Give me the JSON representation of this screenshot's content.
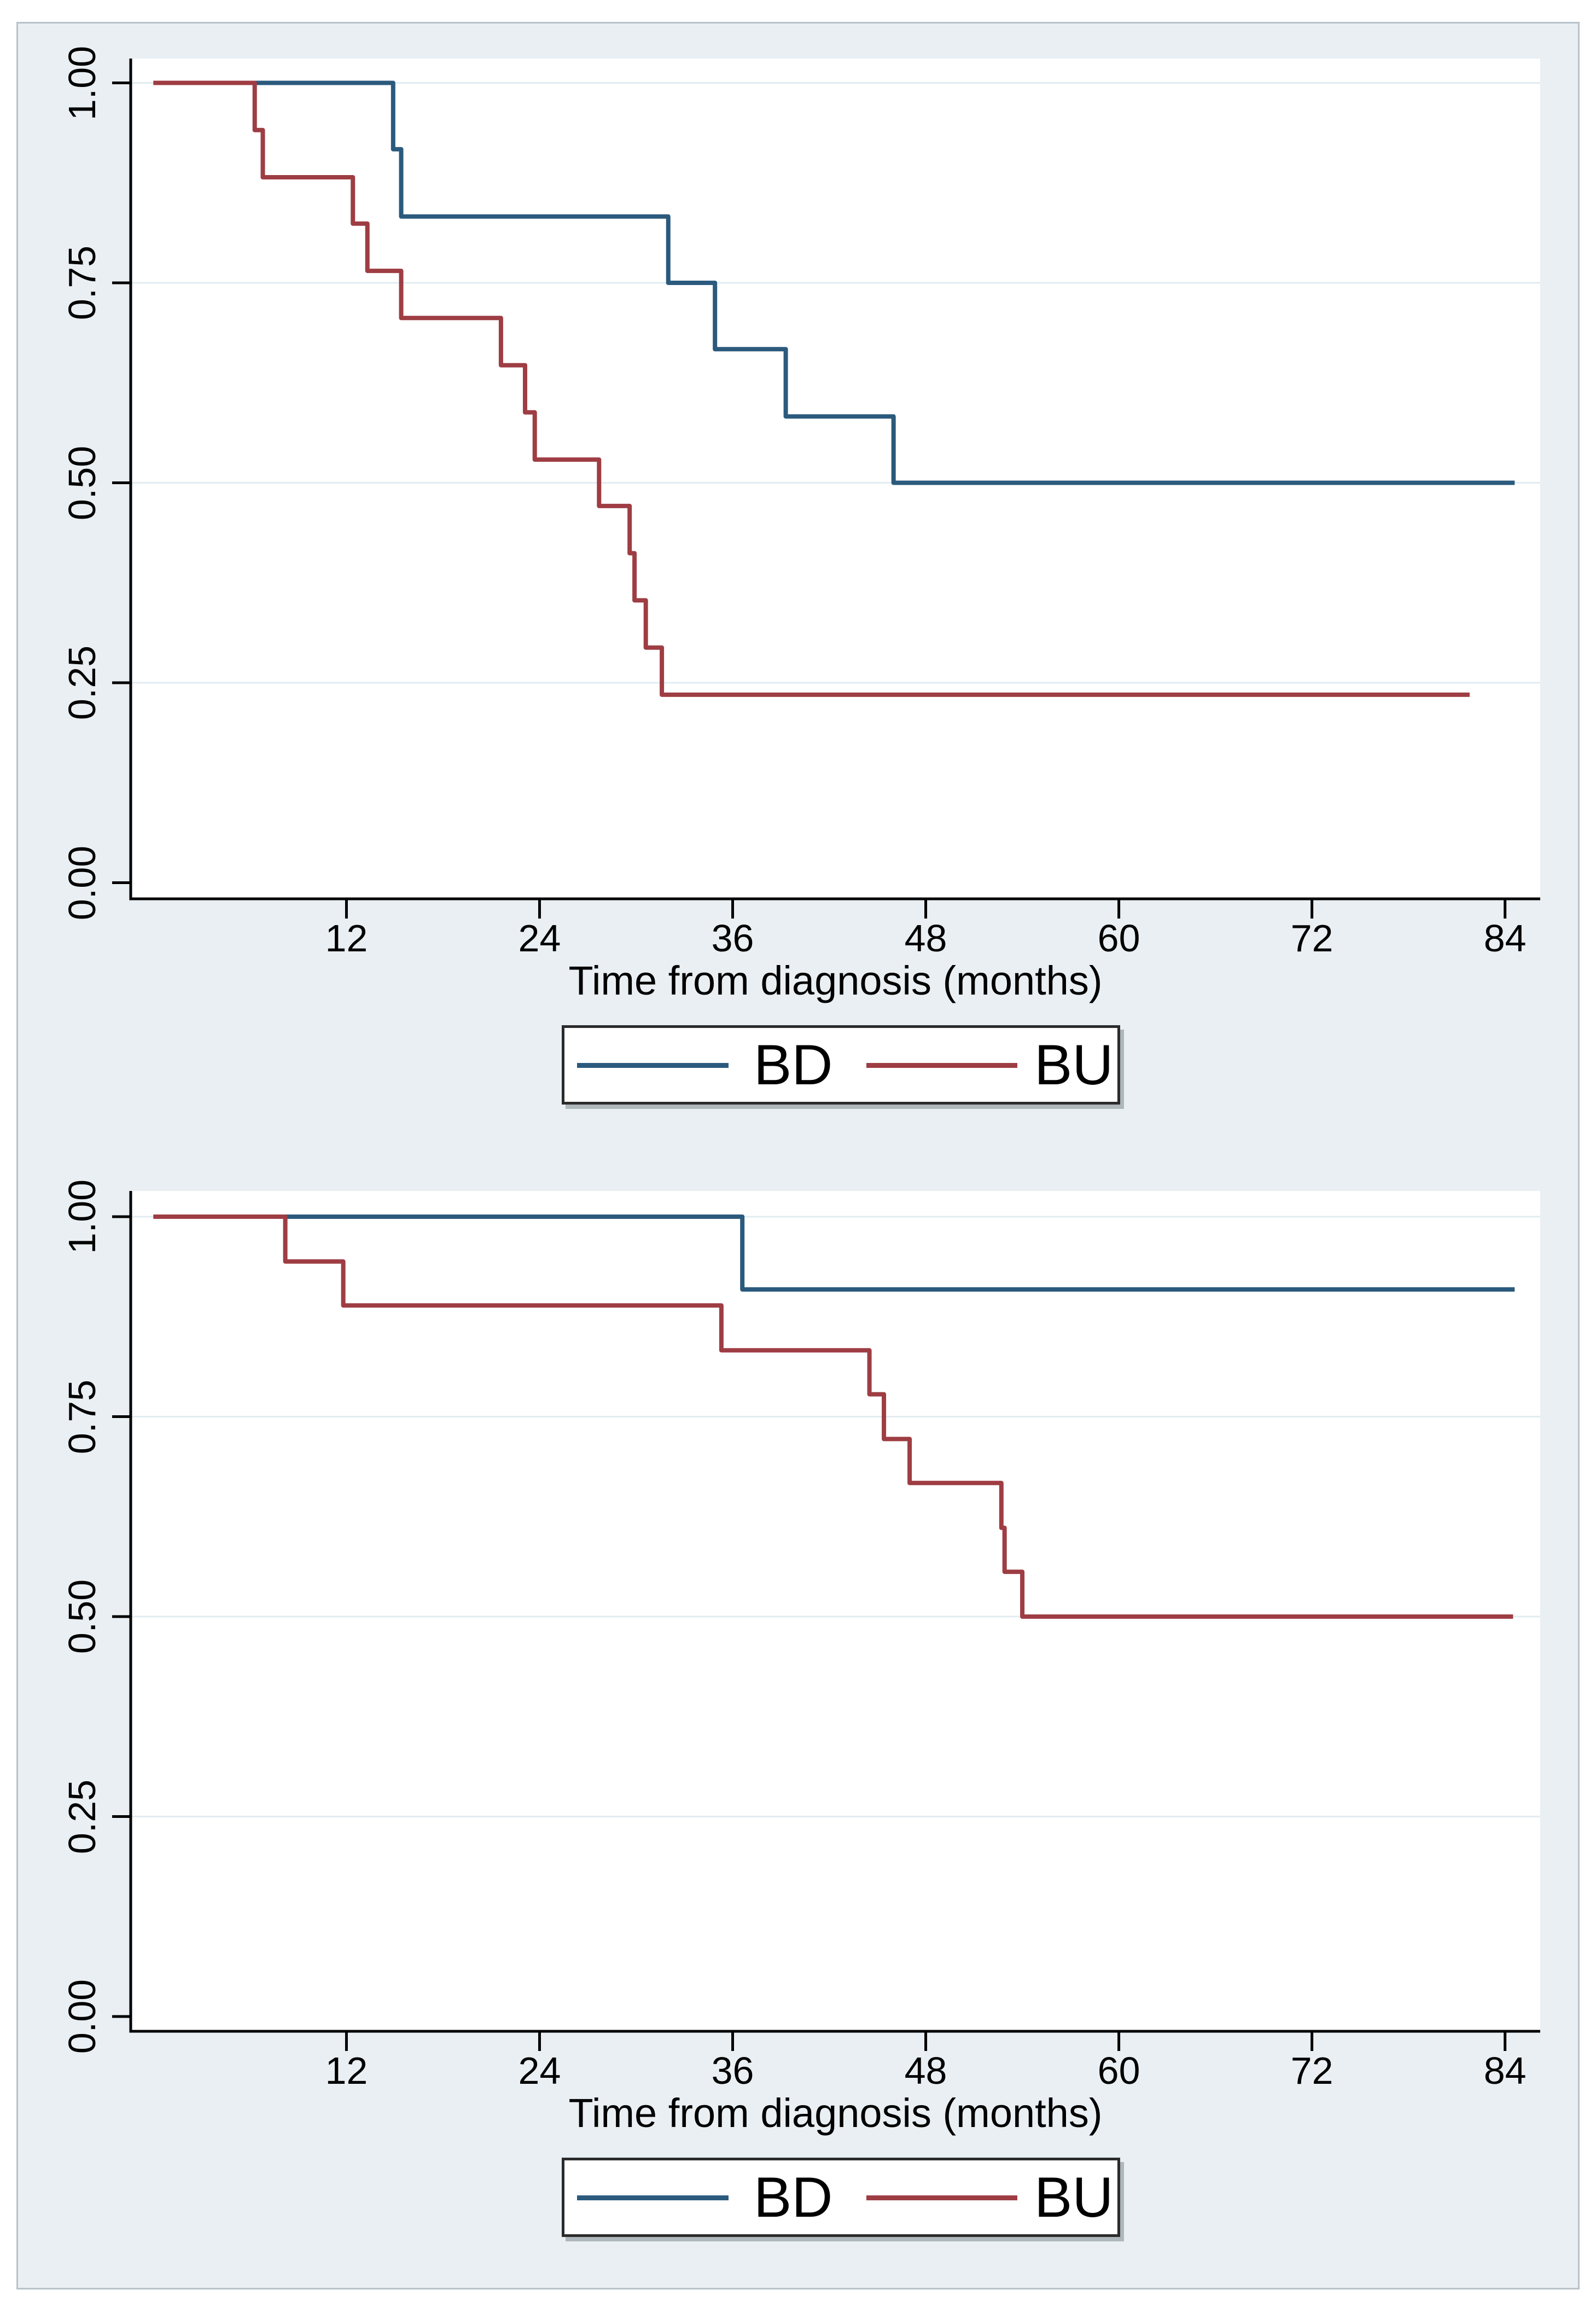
{
  "page": {
    "background": "#ffffff"
  },
  "figure": {
    "background_color": "#e9eff2",
    "border_color": "#b9c2c8"
  },
  "colors": {
    "bd": "#2b5a7d",
    "bu": "#9e3d43",
    "grid": "#e2ecf1",
    "axis": "#000000",
    "plot_background": "#ffffff",
    "legend_border": "#2b2b2b",
    "text": "#000000"
  },
  "chart_data": [
    {
      "type": "line",
      "subtype": "kaplan-meier-step",
      "title": "",
      "xlabel": "Time from diagnosis (months)",
      "ylabel": "",
      "xlim": [
        -1.4,
        86.2
      ],
      "ylim": [
        -0.02,
        1.03
      ],
      "x_ticks": [
        12,
        24,
        36,
        48,
        60,
        72,
        84
      ],
      "y_ticks": [
        "0.00",
        "0.25",
        "0.50",
        "0.75",
        "1.00"
      ],
      "y_tick_values": [
        0,
        0.25,
        0.5,
        0.75,
        1.0
      ],
      "grid_values": [
        0.25,
        0.5,
        0.75,
        1.0
      ],
      "grid": true,
      "legend": [
        "BD",
        "BU"
      ],
      "legend_position": "below-center",
      "series": [
        {
          "name": "BD",
          "color_key": "bd",
          "end_month": 84.6,
          "points": [
            [
              0,
              1.0
            ],
            [
              14.9,
              0.917
            ],
            [
              15.4,
              0.833
            ],
            [
              32,
              0.75
            ],
            [
              34.9,
              0.667
            ],
            [
              39.3,
              0.583
            ],
            [
              46,
              0.5
            ]
          ]
        },
        {
          "name": "BU",
          "color_key": "bu",
          "end_month": 81.8,
          "points": [
            [
              0,
              1.0
            ],
            [
              6.3,
              0.941
            ],
            [
              6.8,
              0.882
            ],
            [
              12.4,
              0.824
            ],
            [
              13.3,
              0.765
            ],
            [
              15.4,
              0.706
            ],
            [
              21.6,
              0.647
            ],
            [
              23.1,
              0.588
            ],
            [
              23.7,
              0.529
            ],
            [
              27.7,
              0.471
            ],
            [
              29.6,
              0.412
            ],
            [
              29.9,
              0.353
            ],
            [
              30.6,
              0.294
            ],
            [
              31.6,
              0.235
            ]
          ]
        }
      ]
    },
    {
      "type": "line",
      "subtype": "kaplan-meier-step",
      "title": "",
      "xlabel": "Time from diagnosis (months)",
      "ylabel": "",
      "xlim": [
        -1.4,
        86.2
      ],
      "ylim": [
        -0.02,
        1.03
      ],
      "x_ticks": [
        12,
        24,
        36,
        48,
        60,
        72,
        84
      ],
      "y_ticks": [
        "0.00",
        "0.25",
        "0.50",
        "0.75",
        "1.00"
      ],
      "y_tick_values": [
        0,
        0.25,
        0.5,
        0.75,
        1.0
      ],
      "grid_values": [
        0.25,
        0.5,
        0.75,
        1.0
      ],
      "grid": true,
      "legend": [
        "BD",
        "BU"
      ],
      "legend_position": "below-center",
      "series": [
        {
          "name": "BD",
          "color_key": "bd",
          "end_month": 84.6,
          "points": [
            [
              0,
              1.0
            ],
            [
              36.6,
              0.909
            ]
          ]
        },
        {
          "name": "BU",
          "color_key": "bu",
          "end_month": 84.5,
          "points": [
            [
              0,
              1.0
            ],
            [
              8.2,
              0.944
            ],
            [
              11.8,
              0.889
            ],
            [
              35.3,
              0.833
            ],
            [
              44.5,
              0.778
            ],
            [
              45.4,
              0.722
            ],
            [
              47,
              0.667
            ],
            [
              52.7,
              0.611
            ],
            [
              52.9,
              0.556
            ],
            [
              54,
              0.5
            ]
          ]
        }
      ]
    }
  ]
}
